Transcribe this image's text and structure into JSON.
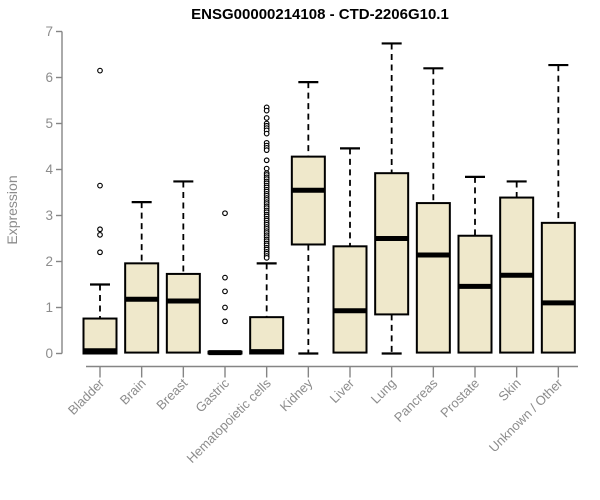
{
  "colors": {
    "box_fill": "#EFE8CB",
    "box_stroke": "#000000",
    "median": "#000000",
    "whisker": "#000000",
    "axis": "#858585",
    "tick_label": "#8c8c8c",
    "title": "#000000",
    "outlier_fill": "#ffffff"
  },
  "chart_data": {
    "type": "boxplot",
    "title": "ENSG00000214108 - CTD-2206G10.1",
    "ylabel": "Expression",
    "xlabel": "",
    "ylim": [
      0,
      7
    ],
    "yticks": [
      0,
      1,
      2,
      3,
      4,
      5,
      6,
      7
    ],
    "grid": false,
    "categories": [
      "Bladder",
      "Brain",
      "Breast",
      "Gastric",
      "Hematopoietic cells",
      "Kidney",
      "Liver",
      "Lung",
      "Pancreas",
      "Prostate",
      "Skin",
      "Unknown / Other"
    ],
    "boxes": [
      {
        "label": "Bladder",
        "whisker_low": 0,
        "q1": 0,
        "median": 0.06,
        "q3": 0.76,
        "whisker_high": 1.5,
        "outliers": [
          6.15,
          3.65,
          2.7,
          2.58,
          2.2
        ]
      },
      {
        "label": "Brain",
        "whisker_low": 0,
        "q1": 0.02,
        "median": 1.18,
        "q3": 1.96,
        "whisker_high": 3.29,
        "outliers": []
      },
      {
        "label": "Breast",
        "whisker_low": 0,
        "q1": 0.02,
        "median": 1.14,
        "q3": 1.73,
        "whisker_high": 3.74,
        "outliers": []
      },
      {
        "label": "Gastric",
        "whisker_low": 0,
        "q1": 0,
        "median": 0.02,
        "q3": 0.04,
        "whisker_high": 0.04,
        "outliers": [
          3.05,
          1.65,
          1.35,
          1.0,
          0.7
        ]
      },
      {
        "label": "Hematopoietic cells",
        "whisker_low": 0,
        "q1": 0,
        "median": 0.04,
        "q3": 0.79,
        "whisker_high": 1.96,
        "outliers": [
          5.35,
          5.28,
          5.12,
          5.0,
          4.95,
          4.9,
          4.85,
          4.78,
          4.58,
          4.52,
          4.47,
          4.42,
          4.2,
          4.02,
          3.92,
          3.88,
          3.83,
          3.79,
          3.74,
          3.7,
          3.65,
          3.61,
          3.56,
          3.52,
          3.47,
          3.43,
          3.38,
          3.34,
          3.29,
          3.25,
          3.2,
          3.16,
          3.11,
          3.07,
          3.02,
          2.98,
          2.93,
          2.89,
          2.84,
          2.8,
          2.75,
          2.71,
          2.66,
          2.62,
          2.57,
          2.53,
          2.48,
          2.44,
          2.39,
          2.35,
          2.3,
          2.26,
          2.21,
          2.17,
          2.12,
          2.08
        ]
      },
      {
        "label": "Kidney",
        "whisker_low": 0,
        "q1": 2.37,
        "median": 3.55,
        "q3": 4.28,
        "whisker_high": 5.9,
        "outliers": []
      },
      {
        "label": "Liver",
        "whisker_low": 0,
        "q1": 0.02,
        "median": 0.93,
        "q3": 2.33,
        "whisker_high": 4.46,
        "outliers": []
      },
      {
        "label": "Lung",
        "whisker_low": 0,
        "q1": 0.85,
        "median": 2.5,
        "q3": 3.92,
        "whisker_high": 6.74,
        "outliers": []
      },
      {
        "label": "Pancreas",
        "whisker_low": 0,
        "q1": 0.02,
        "median": 2.14,
        "q3": 3.27,
        "whisker_high": 6.2,
        "outliers": []
      },
      {
        "label": "Prostate",
        "whisker_low": 0,
        "q1": 0.02,
        "median": 1.46,
        "q3": 2.56,
        "whisker_high": 3.84,
        "outliers": []
      },
      {
        "label": "Skin",
        "whisker_low": 0,
        "q1": 0.02,
        "median": 1.7,
        "q3": 3.39,
        "whisker_high": 3.74,
        "outliers": []
      },
      {
        "label": "Unknown / Other",
        "whisker_low": 0,
        "q1": 0.02,
        "median": 1.1,
        "q3": 2.84,
        "whisker_high": 6.27,
        "outliers": []
      }
    ]
  }
}
